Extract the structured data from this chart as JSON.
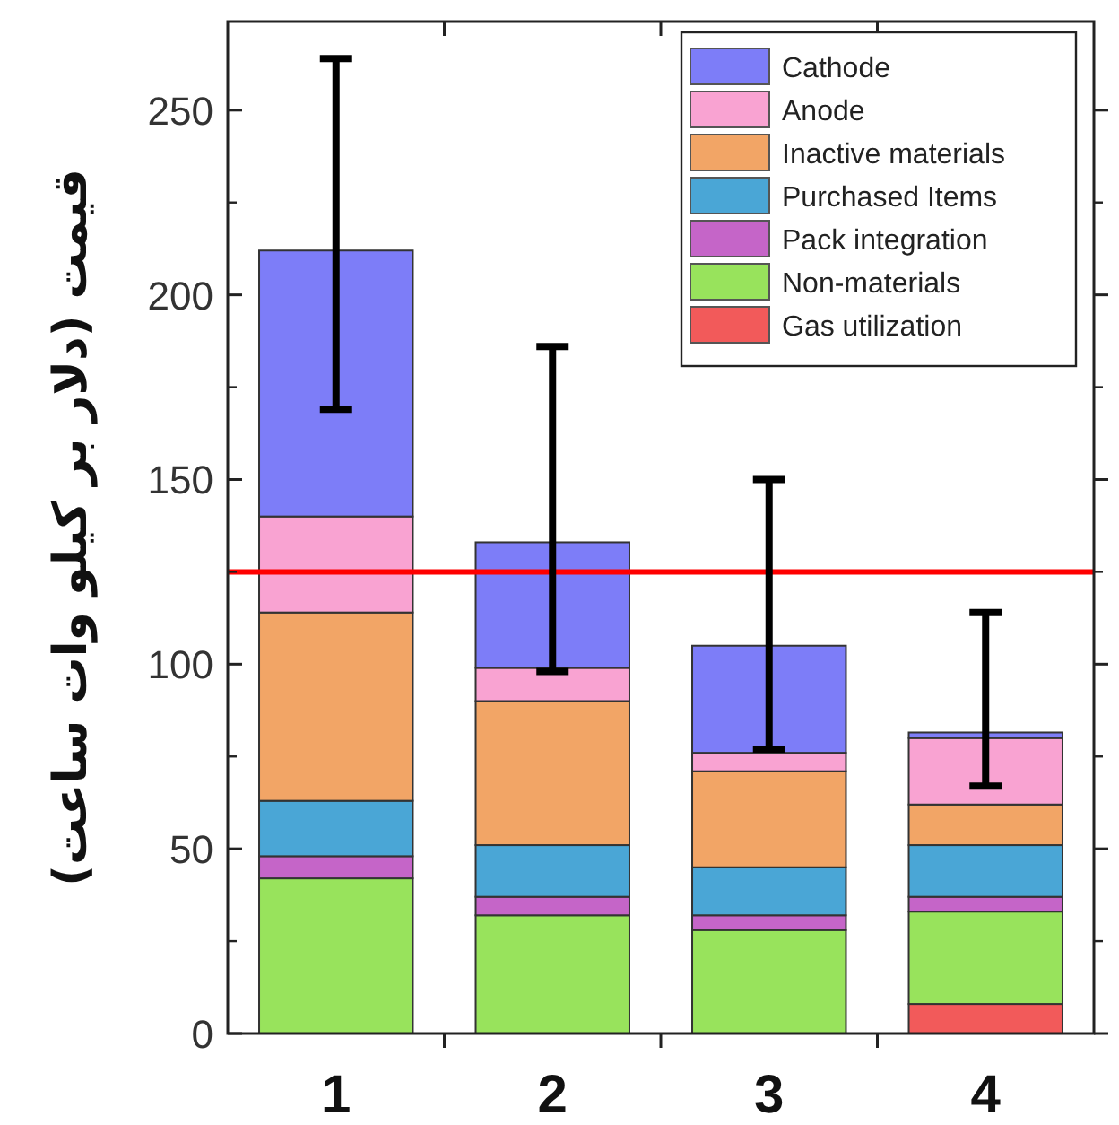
{
  "chart_data": {
    "type": "bar",
    "stacked": true,
    "ylabel": "قیمت (دلار بر کیلو وات ساعت)",
    "categories": [
      "1",
      "2",
      "3",
      "4"
    ],
    "series": [
      {
        "name": "Gas utilization",
        "color": "#f25a5a",
        "values": [
          null,
          null,
          null,
          8
        ]
      },
      {
        "name": "Non-materials",
        "color": "#98e35c",
        "values": [
          42,
          32,
          28,
          25
        ]
      },
      {
        "name": "Pack integration",
        "color": "#c565c8",
        "values": [
          6,
          5,
          4,
          4
        ]
      },
      {
        "name": "Purchased Items",
        "color": "#4aa6d6",
        "values": [
          15,
          14,
          13,
          14
        ]
      },
      {
        "name": "Inactive materials",
        "color": "#f2a566",
        "values": [
          51,
          39,
          26,
          11
        ]
      },
      {
        "name": "Anode",
        "color": "#f9a3d2",
        "values": [
          26,
          9,
          5,
          18
        ]
      },
      {
        "name": "Cathode",
        "color": "#7d7df8",
        "values": [
          72,
          34,
          29,
          1.5
        ],
        "errors": [
          [
            169,
            264
          ],
          [
            98,
            186
          ],
          [
            77,
            150
          ],
          [
            67,
            114
          ]
        ]
      }
    ],
    "ylim": [
      0,
      274
    ],
    "yticks": [
      0,
      50,
      100,
      150,
      200,
      250
    ],
    "ref_lines": [
      {
        "axis": "y",
        "value": 125,
        "color": "#ff0000"
      }
    ],
    "legend": "top right"
  }
}
